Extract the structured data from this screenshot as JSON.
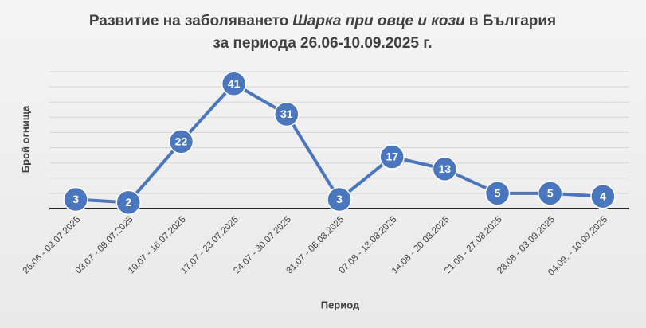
{
  "chart_data": {
    "type": "line",
    "title_parts": [
      "Развитие на заболяването",
      "Шарка при овце и кози",
      "в България"
    ],
    "subtitle": "за периода 26.06-10.09.2025 г.",
    "x_label": "Период",
    "y_label": "Брой огнища",
    "categories": [
      "26.06 - 02.07.2025",
      "03.07 - 09.07.2025",
      "10.07 - 16.07.2025",
      "17.07 - 23.07.2025",
      "24.07 - 30.07.2025",
      "31.07 - 06.08.2025",
      "07.08 - 13.08.2025",
      "14.08 - 20.08.2025",
      "21.08 - 27.08.2025",
      "28.08 - 03.09.2025",
      "04.09. - 10.09.2025"
    ],
    "values": [
      3,
      2,
      22,
      41,
      31,
      3,
      17,
      13,
      5,
      5,
      4
    ],
    "color": "#4a76bd",
    "ylim": [
      0,
      45
    ],
    "yticks": [
      0,
      5,
      10,
      15,
      20,
      25,
      30,
      35,
      40,
      45
    ],
    "grid": true
  }
}
